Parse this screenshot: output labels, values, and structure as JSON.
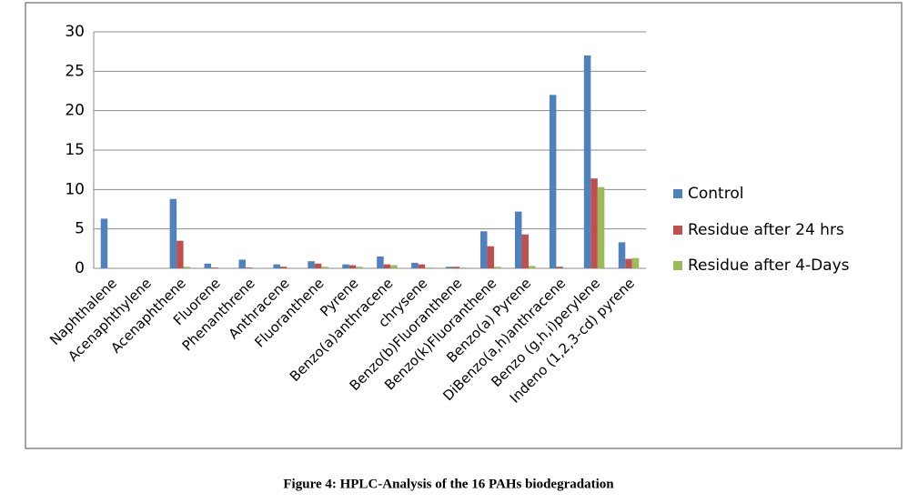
{
  "chart_data": {
    "type": "bar",
    "title": "Figure 4: HPLC-Analysis of the 16 PAHs biodegradation",
    "categories": [
      "Naphthalene",
      "Acenaphthylene",
      "Acenaphthene",
      "Fluorene",
      "Phenanthrene",
      "Anthracene",
      "Fluoranthene",
      "Pyrene",
      "Benzo(a)anthracene",
      "chrysene",
      "Benzo(b)Fluoranthene",
      "Benzo(k)Fluoranthene",
      "Benzo(a) Pyrene",
      "DiBenzo(a,h)anthracene",
      "Benzo (g,h,i)perylene",
      "Indeno (1,2,3-cd) pyrene"
    ],
    "series": [
      {
        "name": "Control",
        "color": "#4f81bd",
        "values": [
          6.3,
          0,
          8.8,
          0.6,
          1.1,
          0.5,
          0.9,
          0.5,
          1.5,
          0.7,
          0.2,
          4.7,
          7.2,
          22,
          27,
          3.3
        ]
      },
      {
        "name": "Residue after 24 hrs",
        "color": "#c0504d",
        "values": [
          0,
          0,
          3.5,
          0.1,
          0.1,
          0.2,
          0.6,
          0.4,
          0.5,
          0.5,
          0.2,
          2.8,
          4.3,
          0.2,
          11.4,
          1.2
        ]
      },
      {
        "name": "Residue after 4-Days",
        "color": "#9bbb59",
        "values": [
          0,
          0,
          0.2,
          0,
          0,
          0,
          0.2,
          0.2,
          0.4,
          0.1,
          0.1,
          0.2,
          0.3,
          0,
          10.3,
          1.3
        ]
      }
    ],
    "ylim": [
      0,
      30
    ],
    "yticks": [
      0,
      5,
      10,
      15,
      20,
      25,
      30
    ],
    "grid": true,
    "legend": "right"
  }
}
